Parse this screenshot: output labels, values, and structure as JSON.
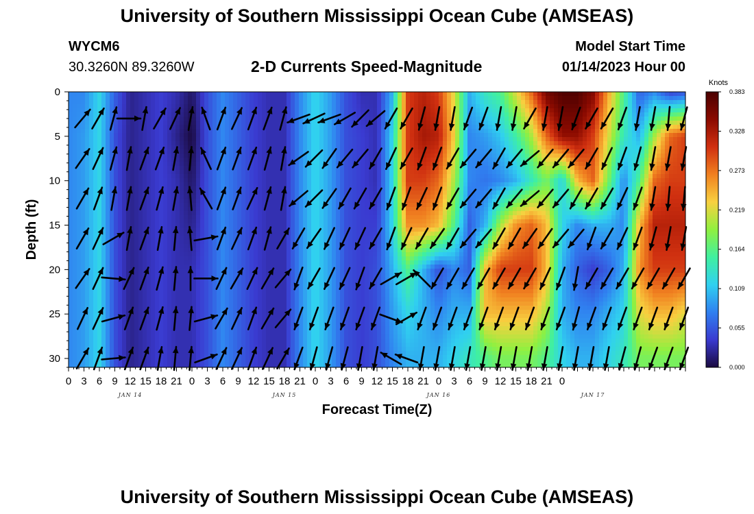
{
  "header": {
    "title": "University of Southern Mississippi Ocean Cube (AMSEAS)",
    "station_id": "WYCM6",
    "station_coords": "30.3260N  89.3260W",
    "plot_name": "2-D Currents Speed-Magnitude",
    "model_start_label": "Model Start Time",
    "model_start_value": "01/14/2023 Hour 00"
  },
  "footer": {
    "title": "University of Southern Mississippi Ocean Cube (AMSEAS)"
  },
  "chart_data": {
    "type": "heatmap",
    "xlabel": "Forecast Time(Z)",
    "ylabel": "Depth (ft)",
    "x_tick_labels": [
      "0",
      "3",
      "6",
      "9",
      "12",
      "15",
      "18",
      "21",
      "0",
      "3",
      "6",
      "9",
      "12",
      "15",
      "18",
      "21",
      "0",
      "3",
      "6",
      "9",
      "12",
      "15",
      "18",
      "21",
      "0",
      "3",
      "6",
      "9",
      "12",
      "15",
      "18",
      "21",
      "0"
    ],
    "day_labels": [
      "JAN 14",
      "JAN 15",
      "JAN 16",
      "JAN 17"
    ],
    "day_label_hours": [
      12,
      42,
      72,
      102
    ],
    "x_range_hours": [
      0,
      120
    ],
    "y_ticks": [
      "0",
      "5",
      "10",
      "15",
      "20",
      "25",
      "30"
    ],
    "ylim": [
      0,
      31
    ],
    "y_inverted": true,
    "colorbar": {
      "unit": "Knots",
      "ticks": [
        "0.000",
        "0.055",
        "0.109",
        "0.164",
        "0.219",
        "0.273",
        "0.328",
        "0.383"
      ],
      "range": [
        0,
        0.383
      ],
      "colors": [
        "#1a0a40",
        "#3a3ad0",
        "#3080f0",
        "#30d0f0",
        "#40f0a0",
        "#90f040",
        "#f8d040",
        "#f08020",
        "#d03010",
        "#8a0a00",
        "#4a0000"
      ]
    },
    "depths_ft": [
      0,
      5,
      10,
      15,
      20,
      25,
      30
    ],
    "speed_profile_hours": [
      0,
      3,
      6,
      9,
      12,
      15,
      18,
      21,
      24,
      27,
      30,
      33,
      36,
      39,
      42,
      45,
      48,
      51,
      54,
      57,
      60,
      63,
      66,
      69,
      72,
      75,
      78,
      81,
      84,
      87,
      90,
      93,
      96,
      99,
      102,
      105,
      108,
      111,
      114,
      117,
      120
    ],
    "speed_knots": [
      [
        0.08,
        0.08,
        0.12,
        0.06,
        0.02,
        0.03,
        0.04,
        0.03,
        0.01,
        0.05,
        0.08,
        0.06,
        0.04,
        0.03,
        0.03,
        0.08,
        0.12,
        0.09,
        0.05,
        0.03,
        0.03,
        0.1,
        0.3,
        0.32,
        0.3,
        0.22,
        0.1,
        0.14,
        0.16,
        0.22,
        0.28,
        0.36,
        0.38,
        0.38,
        0.35,
        0.25,
        0.16,
        0.06,
        0.08,
        0.04,
        0.05
      ],
      [
        0.08,
        0.09,
        0.12,
        0.05,
        0.02,
        0.03,
        0.04,
        0.02,
        0.0,
        0.05,
        0.08,
        0.06,
        0.04,
        0.03,
        0.03,
        0.08,
        0.12,
        0.09,
        0.05,
        0.04,
        0.03,
        0.12,
        0.3,
        0.33,
        0.32,
        0.23,
        0.08,
        0.09,
        0.11,
        0.15,
        0.2,
        0.28,
        0.34,
        0.34,
        0.3,
        0.22,
        0.14,
        0.1,
        0.2,
        0.28,
        0.3
      ],
      [
        0.08,
        0.09,
        0.12,
        0.05,
        0.02,
        0.03,
        0.04,
        0.03,
        0.01,
        0.05,
        0.08,
        0.06,
        0.04,
        0.03,
        0.03,
        0.08,
        0.12,
        0.09,
        0.05,
        0.04,
        0.03,
        0.12,
        0.3,
        0.3,
        0.28,
        0.2,
        0.08,
        0.07,
        0.08,
        0.1,
        0.14,
        0.18,
        0.12,
        0.24,
        0.28,
        0.18,
        0.08,
        0.16,
        0.28,
        0.3,
        0.3
      ],
      [
        0.08,
        0.09,
        0.12,
        0.05,
        0.02,
        0.03,
        0.04,
        0.03,
        0.02,
        0.05,
        0.08,
        0.06,
        0.04,
        0.03,
        0.03,
        0.08,
        0.12,
        0.09,
        0.05,
        0.04,
        0.04,
        0.12,
        0.26,
        0.26,
        0.24,
        0.16,
        0.06,
        0.1,
        0.2,
        0.26,
        0.28,
        0.24,
        0.12,
        0.08,
        0.1,
        0.1,
        0.08,
        0.24,
        0.32,
        0.32,
        0.32
      ],
      [
        0.08,
        0.09,
        0.12,
        0.05,
        0.02,
        0.03,
        0.04,
        0.03,
        0.03,
        0.05,
        0.08,
        0.06,
        0.04,
        0.03,
        0.03,
        0.08,
        0.12,
        0.09,
        0.05,
        0.04,
        0.05,
        0.1,
        0.16,
        0.1,
        0.05,
        0.08,
        0.06,
        0.24,
        0.3,
        0.3,
        0.3,
        0.24,
        0.1,
        0.06,
        0.04,
        0.06,
        0.1,
        0.26,
        0.3,
        0.3,
        0.3
      ],
      [
        0.08,
        0.09,
        0.12,
        0.05,
        0.02,
        0.03,
        0.04,
        0.03,
        0.03,
        0.05,
        0.08,
        0.06,
        0.04,
        0.03,
        0.03,
        0.08,
        0.12,
        0.09,
        0.05,
        0.04,
        0.05,
        0.09,
        0.12,
        0.1,
        0.08,
        0.1,
        0.1,
        0.24,
        0.24,
        0.24,
        0.24,
        0.2,
        0.1,
        0.08,
        0.08,
        0.1,
        0.12,
        0.22,
        0.24,
        0.24,
        0.22
      ],
      [
        0.08,
        0.09,
        0.12,
        0.05,
        0.02,
        0.03,
        0.04,
        0.03,
        0.03,
        0.05,
        0.08,
        0.06,
        0.04,
        0.03,
        0.03,
        0.08,
        0.12,
        0.09,
        0.05,
        0.04,
        0.05,
        0.08,
        0.1,
        0.1,
        0.1,
        0.12,
        0.14,
        0.16,
        0.18,
        0.18,
        0.18,
        0.16,
        0.12,
        0.1,
        0.1,
        0.12,
        0.14,
        0.18,
        0.18,
        0.18,
        0.18
      ]
    ],
    "arrow_hours": [
      1,
      4,
      7,
      10,
      13,
      16,
      19,
      22,
      25,
      28,
      31,
      34,
      37,
      40,
      43,
      46,
      49,
      52,
      55,
      58,
      61,
      64,
      67,
      70,
      73,
      76,
      79,
      82,
      85,
      88,
      91,
      94,
      97,
      100,
      103,
      106,
      109,
      112,
      115,
      118
    ],
    "arrow_depths_ft": [
      3,
      7.5,
      12,
      16.5,
      21,
      25.5,
      30
    ],
    "arrow_dir_deg": [
      [
        40,
        30,
        15,
        90,
        10,
        30,
        25,
        10,
        -20,
        20,
        25,
        20,
        20,
        15,
        -110,
        -115,
        -110,
        -120,
        -135,
        -130,
        -150,
        -150,
        -165,
        -170,
        -170,
        -160,
        -160,
        -170,
        -170,
        -150,
        -170,
        -170,
        -160,
        -150,
        -150,
        -160,
        -170,
        -170,
        -175,
        -165
      ],
      [
        35,
        25,
        15,
        10,
        20,
        20,
        10,
        5,
        -25,
        20,
        20,
        20,
        15,
        10,
        -125,
        -135,
        -145,
        -140,
        -140,
        -150,
        -155,
        -150,
        -160,
        -160,
        -150,
        -140,
        -140,
        -150,
        -140,
        -130,
        -140,
        -140,
        -140,
        -150,
        -155,
        -160,
        -165,
        -170,
        -170,
        -170
      ],
      [
        30,
        20,
        10,
        10,
        20,
        15,
        10,
        -5,
        -30,
        20,
        20,
        25,
        15,
        10,
        -130,
        -135,
        -145,
        -150,
        -150,
        -150,
        -160,
        -160,
        -155,
        -160,
        -150,
        -140,
        -140,
        -150,
        -140,
        -130,
        -140,
        -140,
        -150,
        -150,
        -150,
        -155,
        -160,
        -170,
        -175,
        -175
      ],
      [
        30,
        25,
        60,
        10,
        20,
        10,
        5,
        -5,
        80,
        20,
        25,
        20,
        15,
        30,
        -150,
        -145,
        -155,
        -155,
        -155,
        -150,
        -160,
        -155,
        -150,
        -145,
        -150,
        -140,
        -140,
        -150,
        -150,
        -145,
        -145,
        -140,
        -140,
        -160,
        -150,
        -155,
        -160,
        -165,
        -170,
        -170
      ],
      [
        35,
        25,
        95,
        25,
        20,
        15,
        5,
        0,
        90,
        25,
        30,
        25,
        30,
        40,
        -160,
        -150,
        -155,
        -155,
        -160,
        -150,
        60,
        60,
        -45,
        -150,
        -150,
        -150,
        -150,
        -150,
        -150,
        -150,
        -155,
        -160,
        -170,
        -150,
        -150,
        -150,
        -150,
        -150,
        -150,
        -150
      ],
      [
        25,
        25,
        75,
        20,
        20,
        15,
        5,
        5,
        75,
        30,
        25,
        20,
        30,
        40,
        -160,
        -160,
        -160,
        -160,
        -160,
        -160,
        110,
        60,
        -160,
        -160,
        -160,
        -160,
        -160,
        -160,
        -160,
        -160,
        -160,
        -160,
        -165,
        -160,
        -160,
        -160,
        -160,
        -160,
        -160,
        -160
      ],
      [
        30,
        20,
        85,
        20,
        20,
        10,
        5,
        5,
        70,
        25,
        25,
        20,
        25,
        30,
        -160,
        -165,
        -165,
        -165,
        -170,
        -170,
        -60,
        -70,
        -170,
        -170,
        -170,
        -170,
        -170,
        -170,
        -170,
        -170,
        -170,
        -170,
        -170,
        -170,
        -170,
        -165,
        -165,
        -160,
        -160,
        -160
      ]
    ]
  }
}
